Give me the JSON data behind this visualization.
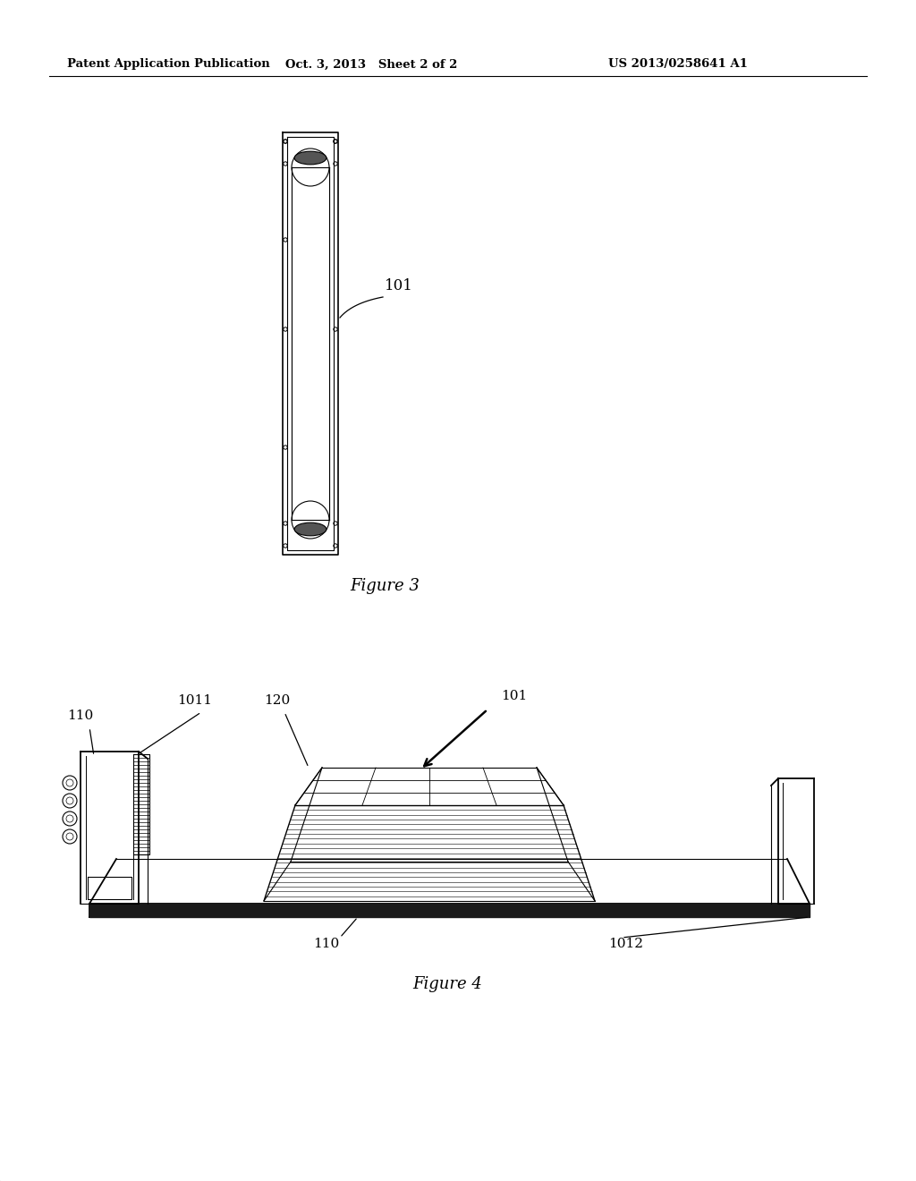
{
  "bg_color": "#ffffff",
  "header_left": "Patent Application Publication",
  "header_mid": "Oct. 3, 2013   Sheet 2 of 2",
  "header_right": "US 2013/0258641 A1",
  "fig3_caption": "Figure 3",
  "fig4_caption": "Figure 4",
  "label_101_fig3": "101",
  "label_101_fig4": "101",
  "label_110_left": "110",
  "label_110_bottom": "110",
  "label_1011": "1011",
  "label_1012": "1012",
  "label_120": "120"
}
